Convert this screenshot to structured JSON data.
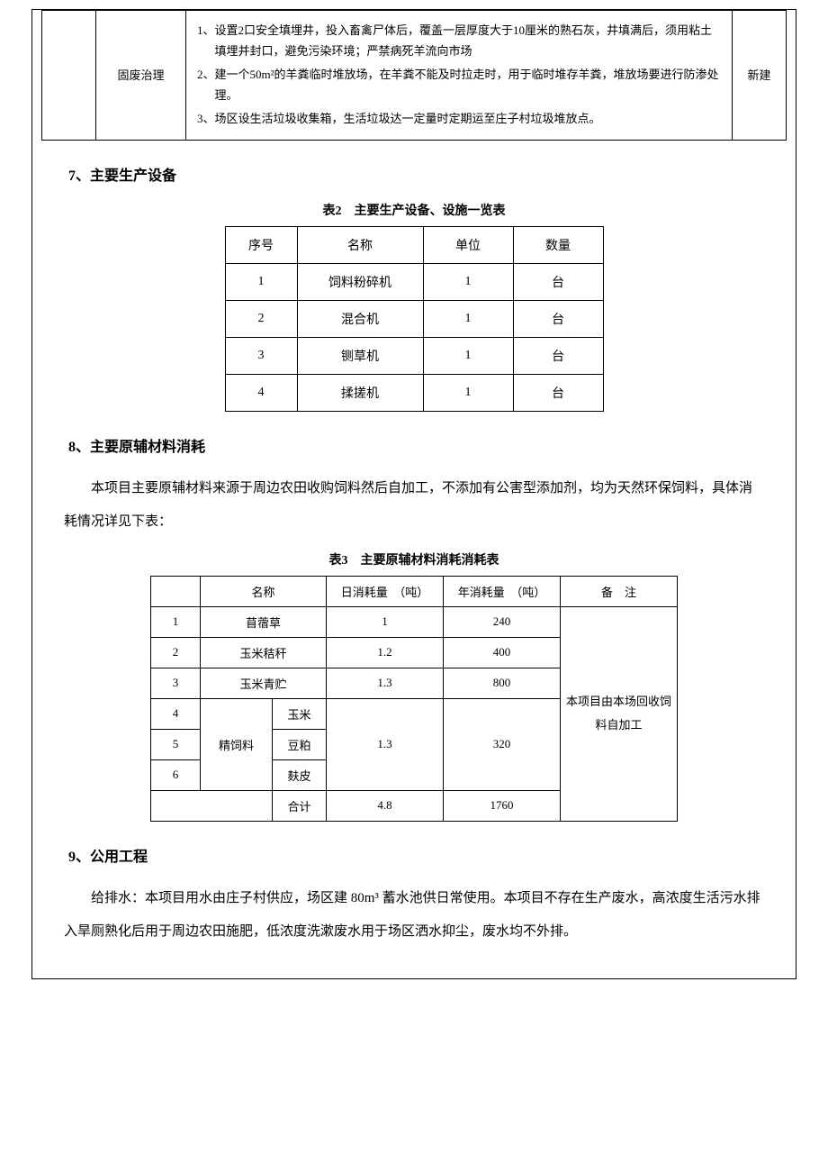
{
  "topTable": {
    "col2Label": "固废治理",
    "col4Label": "新建",
    "items": [
      {
        "num": "1、",
        "text": "设置2口安全填埋井，投入畜禽尸体后，覆盖一层厚度大于10厘米的熟石灰，井填满后，须用粘土填埋并封口，避免污染环境；严禁病死羊流向市场"
      },
      {
        "num": "2、",
        "text": "建一个50m²的羊粪临时堆放场，在羊粪不能及时拉走时，用于临时堆存羊粪，堆放场要进行防渗处理。"
      },
      {
        "num": "3、",
        "text": "场区设生活垃圾收集箱，生活垃圾达一定量时定期运至庄子村垃圾堆放点。"
      }
    ]
  },
  "section7": {
    "heading": "7、主要生产设备",
    "caption": "表2　主要生产设备、设施一览表",
    "headers": [
      "序号",
      "名称",
      "单位",
      "数量"
    ],
    "rows": [
      [
        "1",
        "饲料粉碎机",
        "1",
        "台"
      ],
      [
        "2",
        "混合机",
        "1",
        "台"
      ],
      [
        "3",
        "铡草机",
        "1",
        "台"
      ],
      [
        "4",
        "揉搓机",
        "1",
        "台"
      ]
    ]
  },
  "section8": {
    "heading": "8、主要原辅材料消耗",
    "paragraph": "本项目主要原辅材料来源于周边农田收购饲料然后自加工，不添加有公害型添加剂，均为天然环保饲料，具体消耗情况详见下表：",
    "caption": "表3　主要原辅材料消耗消耗表",
    "headers": {
      "col1": "",
      "col2": "名称",
      "col3": "日消耗量　（吨）",
      "col4": "年消耗量　（吨）",
      "col5": "备　注"
    },
    "rows": [
      {
        "idx": "1",
        "name": "苜蓿草",
        "daily": "1",
        "yearly": "240"
      },
      {
        "idx": "2",
        "name": "玉米秸秆",
        "daily": "1.2",
        "yearly": "400"
      },
      {
        "idx": "3",
        "name": "玉米青贮",
        "daily": "1.3",
        "yearly": "800"
      }
    ],
    "groupLabel": "精饲料",
    "groupRows": [
      {
        "idx": "4",
        "sub": "玉米"
      },
      {
        "idx": "5",
        "sub": "豆粕"
      },
      {
        "idx": "6",
        "sub": "麸皮"
      }
    ],
    "groupDaily": "1.3",
    "groupYearly": "320",
    "totalLabel": "合计",
    "totalDaily": "4.8",
    "totalYearly": "1760",
    "note": "本项目由本场回收饲料自加工"
  },
  "section9": {
    "heading": "9、公用工程",
    "paragraph": "给排水：本项目用水由庄子村供应，场区建 80m³ 蓄水池供日常使用。本项目不存在生产废水，高浓度生活污水排入旱厕熟化后用于周边农田施肥，低浓度洗漱废水用于场区洒水抑尘，废水均不外排。"
  }
}
